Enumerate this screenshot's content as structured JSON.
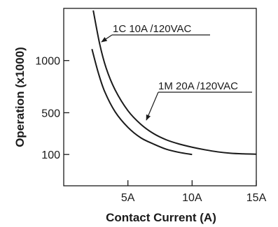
{
  "chart_data": {
    "type": "line",
    "xlabel": "Contact Current (A)",
    "ylabel": "Operation (x1000)",
    "xlim": [
      0,
      15
    ],
    "ylim": [
      -200,
      1500
    ],
    "x_ticks": [
      {
        "value": 5,
        "label": "5A"
      },
      {
        "value": 10,
        "label": "10A"
      },
      {
        "value": 15,
        "label": "15A"
      }
    ],
    "y_ticks": [
      {
        "value": 1000,
        "label": "1000"
      },
      {
        "value": 500,
        "label": "500"
      },
      {
        "value": 100,
        "label": "100"
      }
    ],
    "grid": false,
    "series": [
      {
        "name": "1C 10A /120VAC",
        "x": [
          2.3,
          2.8,
          3.3,
          4,
          5,
          6,
          7,
          8,
          9,
          10,
          11,
          12,
          13,
          14,
          15
        ],
        "y": [
          1480,
          1160,
          930,
          720,
          520,
          390,
          300,
          240,
          200,
          170,
          145,
          125,
          112,
          106,
          103
        ]
      },
      {
        "name": "1M 20A /120VAC",
        "x": [
          2.2,
          2.7,
          3.2,
          4,
          5,
          6,
          7,
          8,
          9,
          10
        ],
        "y": [
          1110,
          880,
          700,
          510,
          360,
          260,
          200,
          150,
          120,
          100
        ]
      }
    ]
  }
}
